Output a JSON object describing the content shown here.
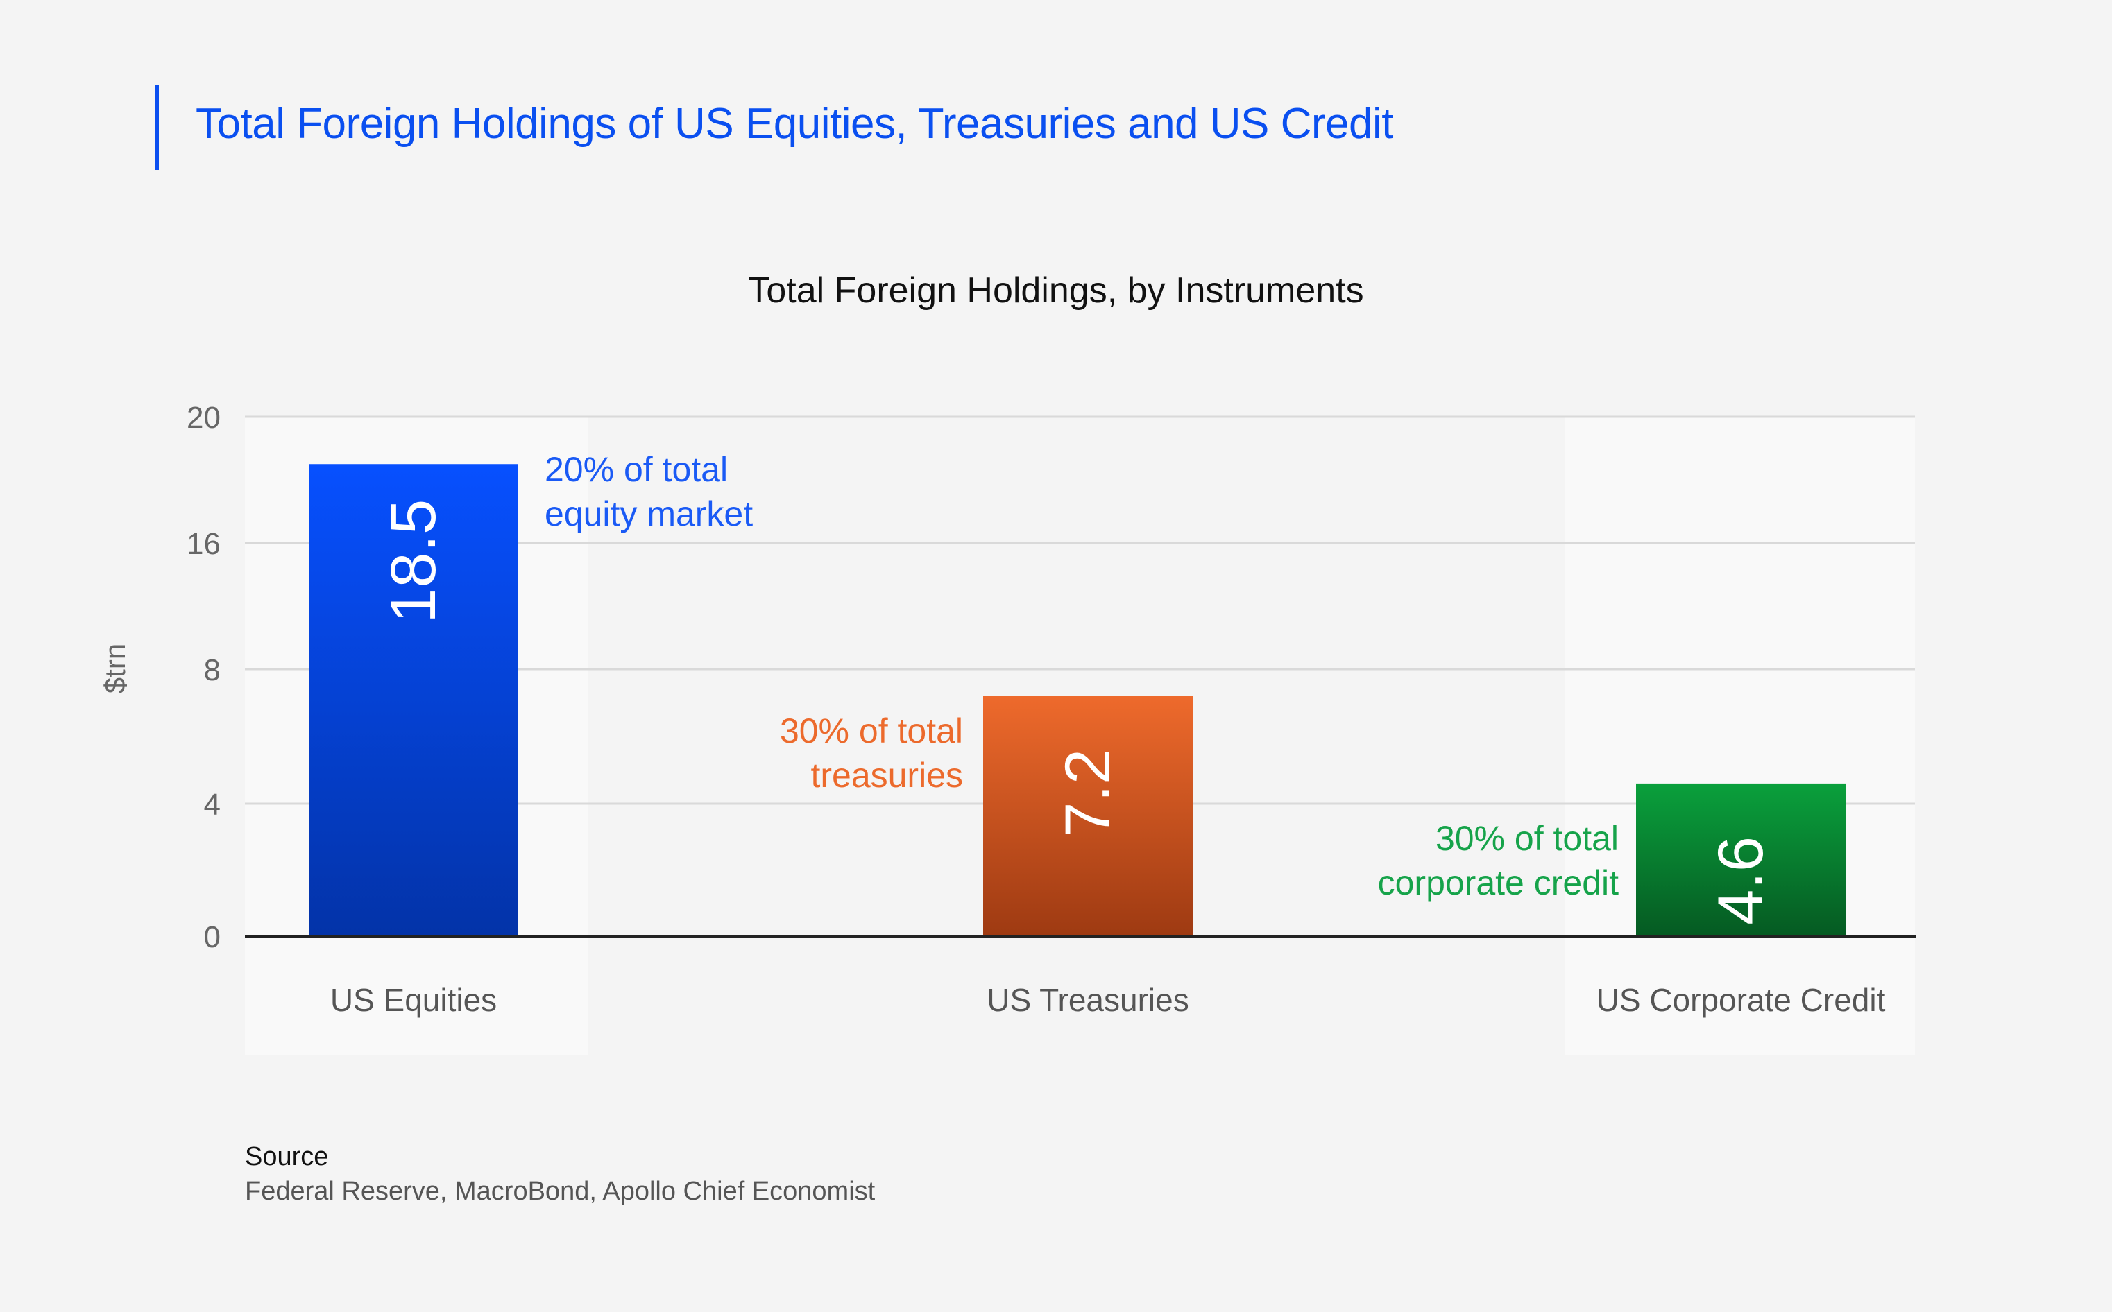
{
  "header": {
    "title": "Total Foreign Holdings of US Equities, Treasuries and US Credit",
    "accent_color": "#0a4ff0"
  },
  "source": {
    "label": "Source",
    "text": "Federal Reserve, MacroBond, Apollo Chief Economist"
  },
  "chart_data": {
    "type": "bar",
    "title": "Total Foreign Holdings, by Instruments",
    "xlabel": "",
    "ylabel": "$trn",
    "ylim": [
      0,
      20
    ],
    "y_ticks": [
      0,
      4,
      8,
      16,
      20
    ],
    "axis_scale": "non-linear (ticks 0, 4, 8, 16, 20 equally spaced)",
    "grid": true,
    "categories": [
      "US Equities",
      "US Treasuries",
      "US Corporate Credit"
    ],
    "values": [
      18.5,
      7.2,
      4.6
    ],
    "value_labels": [
      "18.5",
      "7.2",
      "4.6"
    ],
    "annotations": [
      {
        "lines": [
          "20% of total",
          "equity market"
        ],
        "color": "#1a5af5"
      },
      {
        "lines": [
          "30% of total",
          "treasuries"
        ],
        "color": "#ec6a2c"
      },
      {
        "lines": [
          "30% of total",
          "corporate credit"
        ],
        "color": "#16a34a"
      }
    ],
    "colors": {
      "US Equities": [
        "#0750ff",
        "#0333a8"
      ],
      "US Treasuries": [
        "#ee6a2c",
        "#9e3a12"
      ],
      "US Corporate Credit": [
        "#0aa03c",
        "#055a22"
      ]
    }
  }
}
